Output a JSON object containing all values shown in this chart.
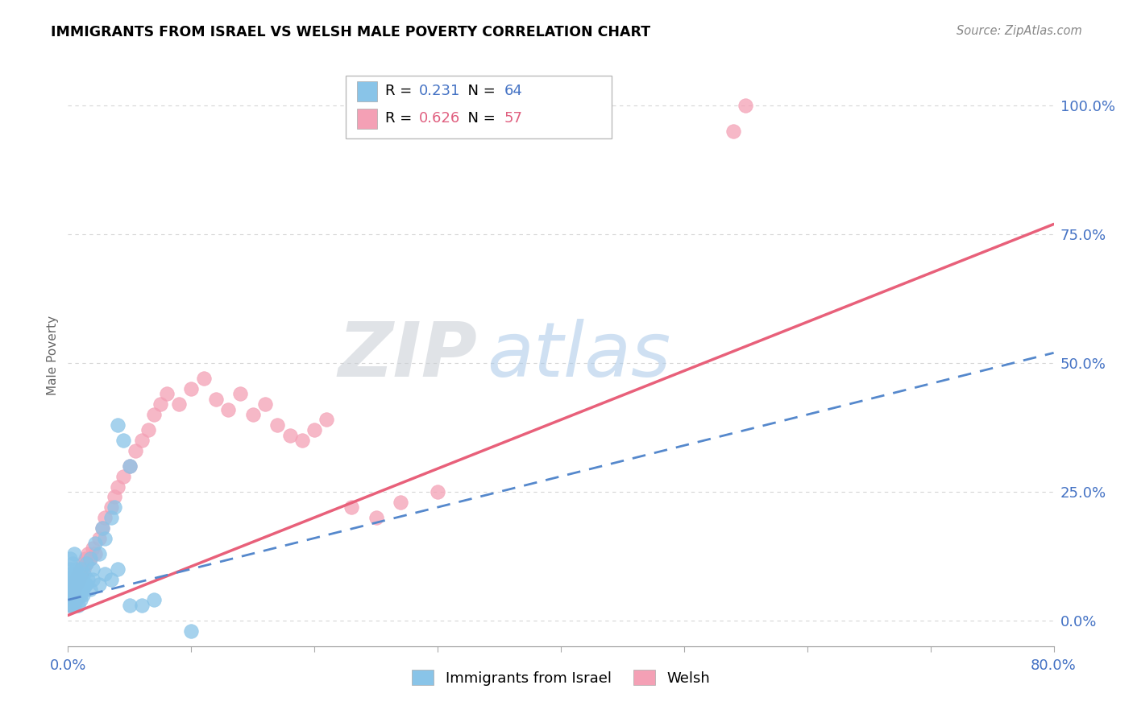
{
  "title": "IMMIGRANTS FROM ISRAEL VS WELSH MALE POVERTY CORRELATION CHART",
  "source": "Source: ZipAtlas.com",
  "ylabel": "Male Poverty",
  "ytick_labels": [
    "0.0%",
    "25.0%",
    "50.0%",
    "75.0%",
    "100.0%"
  ],
  "ytick_values": [
    0.0,
    0.25,
    0.5,
    0.75,
    1.0
  ],
  "xlim": [
    0.0,
    0.8
  ],
  "ylim": [
    -0.05,
    1.08
  ],
  "watermark_zip": "ZIP",
  "watermark_atlas": "atlas",
  "legend_label1": "Immigrants from Israel",
  "legend_label2": "Welsh",
  "R1": "0.231",
  "N1": "64",
  "R2": "0.626",
  "N2": "57",
  "color_israel": "#89c4e8",
  "color_welsh": "#f4a0b5",
  "color_israel_line": "#5588cc",
  "color_welsh_line": "#e8607a",
  "background_color": "#ffffff",
  "grid_color": "#cccccc",
  "israel_x": [
    0.001,
    0.001,
    0.002,
    0.002,
    0.002,
    0.003,
    0.003,
    0.003,
    0.004,
    0.004,
    0.004,
    0.005,
    0.005,
    0.005,
    0.006,
    0.006,
    0.007,
    0.007,
    0.008,
    0.008,
    0.009,
    0.01,
    0.01,
    0.011,
    0.012,
    0.013,
    0.014,
    0.015,
    0.016,
    0.018,
    0.02,
    0.022,
    0.025,
    0.028,
    0.03,
    0.035,
    0.038,
    0.04,
    0.045,
    0.05,
    0.001,
    0.002,
    0.003,
    0.003,
    0.004,
    0.005,
    0.006,
    0.007,
    0.008,
    0.009,
    0.01,
    0.011,
    0.012,
    0.015,
    0.018,
    0.02,
    0.025,
    0.03,
    0.035,
    0.04,
    0.05,
    0.06,
    0.07,
    0.1
  ],
  "israel_y": [
    0.05,
    0.08,
    0.06,
    0.1,
    0.12,
    0.04,
    0.07,
    0.09,
    0.05,
    0.08,
    0.11,
    0.06,
    0.09,
    0.13,
    0.07,
    0.1,
    0.05,
    0.08,
    0.06,
    0.09,
    0.07,
    0.05,
    0.08,
    0.1,
    0.06,
    0.09,
    0.07,
    0.11,
    0.08,
    0.12,
    0.1,
    0.15,
    0.13,
    0.18,
    0.16,
    0.2,
    0.22,
    0.38,
    0.35,
    0.3,
    0.03,
    0.04,
    0.03,
    0.05,
    0.04,
    0.03,
    0.05,
    0.04,
    0.03,
    0.05,
    0.04,
    0.06,
    0.05,
    0.07,
    0.06,
    0.08,
    0.07,
    0.09,
    0.08,
    0.1,
    0.03,
    0.03,
    0.04,
    -0.02
  ],
  "welsh_x": [
    0.001,
    0.002,
    0.003,
    0.004,
    0.005,
    0.006,
    0.007,
    0.008,
    0.009,
    0.01,
    0.011,
    0.012,
    0.013,
    0.014,
    0.015,
    0.016,
    0.018,
    0.02,
    0.022,
    0.025,
    0.028,
    0.03,
    0.035,
    0.038,
    0.04,
    0.045,
    0.05,
    0.055,
    0.06,
    0.065,
    0.07,
    0.075,
    0.08,
    0.09,
    0.1,
    0.11,
    0.12,
    0.13,
    0.14,
    0.15,
    0.16,
    0.17,
    0.18,
    0.19,
    0.2,
    0.21,
    0.23,
    0.25,
    0.27,
    0.3,
    0.002,
    0.003,
    0.004,
    0.005,
    0.006,
    0.55,
    0.54
  ],
  "welsh_y": [
    0.04,
    0.06,
    0.05,
    0.07,
    0.06,
    0.08,
    0.07,
    0.09,
    0.08,
    0.1,
    0.09,
    0.11,
    0.1,
    0.12,
    0.11,
    0.13,
    0.12,
    0.14,
    0.13,
    0.16,
    0.18,
    0.2,
    0.22,
    0.24,
    0.26,
    0.28,
    0.3,
    0.33,
    0.35,
    0.37,
    0.4,
    0.42,
    0.44,
    0.42,
    0.45,
    0.47,
    0.43,
    0.41,
    0.44,
    0.4,
    0.42,
    0.38,
    0.36,
    0.35,
    0.37,
    0.39,
    0.22,
    0.2,
    0.23,
    0.25,
    0.03,
    0.04,
    0.03,
    0.05,
    0.04,
    1.0,
    0.95
  ],
  "israel_trendline_x": [
    0.0,
    0.8
  ],
  "israel_trendline_y": [
    0.04,
    0.52
  ],
  "welsh_trendline_x": [
    0.0,
    0.8
  ],
  "welsh_trendline_y": [
    0.01,
    0.77
  ]
}
